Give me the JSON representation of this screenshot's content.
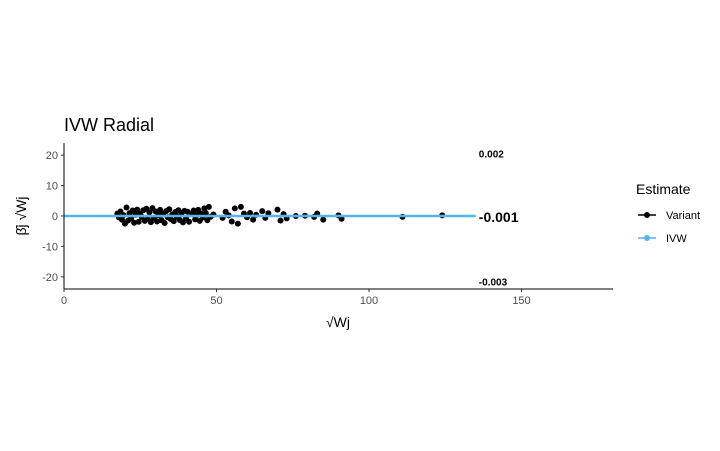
{
  "chart_data": {
    "type": "scatter",
    "title": "IVW Radial",
    "xlabel": "√Wj",
    "ylabel": "β̂j √Wj",
    "xlim": [
      0,
      180
    ],
    "ylim": [
      -24,
      24
    ],
    "x_ticks": [
      0,
      50,
      100,
      150
    ],
    "x_tick_labels": [
      "0",
      "50",
      "100",
      "150"
    ],
    "y_ticks": [
      20,
      10,
      0,
      -10,
      -20
    ],
    "y_tick_labels": [
      "20",
      "10",
      "0",
      "-10",
      "-20"
    ],
    "grid": false,
    "legend": {
      "title": "Estimate",
      "position": "right",
      "entries": [
        {
          "label": "Variant",
          "color": "#000000"
        },
        {
          "label": "IVW",
          "color": "#56B4E9"
        }
      ]
    },
    "series": [
      {
        "name": "Variant",
        "color": "#000000",
        "points": [
          [
            17.5,
            0.8
          ],
          [
            18,
            -0.5
          ],
          [
            18.5,
            1.5
          ],
          [
            19,
            -1.2
          ],
          [
            19.5,
            0.3
          ],
          [
            20,
            -2.5
          ],
          [
            20.5,
            2.8
          ],
          [
            21,
            -1.5
          ],
          [
            21.5,
            0.9
          ],
          [
            22,
            -0.8
          ],
          [
            22.5,
            1.8
          ],
          [
            23,
            -2.2
          ],
          [
            23.5,
            0.4
          ],
          [
            24,
            2.1
          ],
          [
            24.5,
            -1.9
          ],
          [
            25,
            0.6
          ],
          [
            25.5,
            -0.3
          ],
          [
            26,
            1.9
          ],
          [
            26.5,
            -1.6
          ],
          [
            27,
            2.4
          ],
          [
            27.5,
            -0.9
          ],
          [
            28,
            1.2
          ],
          [
            28.5,
            -2.0
          ],
          [
            29,
            2.6
          ],
          [
            29.5,
            -0.6
          ],
          [
            30,
            1.5
          ],
          [
            30.5,
            -1.8
          ],
          [
            31,
            0.2
          ],
          [
            31.5,
            2.0
          ],
          [
            32,
            -1.4
          ],
          [
            32.5,
            0.7
          ],
          [
            33,
            -2.3
          ],
          [
            33.5,
            1.6
          ],
          [
            34,
            -0.4
          ],
          [
            34.5,
            2.2
          ],
          [
            35,
            -1.0
          ],
          [
            35.5,
            0.5
          ],
          [
            36,
            -1.7
          ],
          [
            36.5,
            1.3
          ],
          [
            37,
            -0.2
          ],
          [
            37.5,
            1.9
          ],
          [
            38,
            -1.3
          ],
          [
            38.5,
            0.9
          ],
          [
            39,
            -2.1
          ],
          [
            39.5,
            1.7
          ],
          [
            40,
            -0.7
          ],
          [
            40.5,
            1.4
          ],
          [
            41,
            -1.9
          ],
          [
            42,
            0.6
          ],
          [
            42.5,
            1.8
          ],
          [
            43,
            -1.1
          ],
          [
            43.5,
            0.3
          ],
          [
            44,
            2.0
          ],
          [
            44.5,
            -1.6
          ],
          [
            45,
            0.8
          ],
          [
            45.5,
            -0.5
          ],
          [
            46,
            2.5
          ],
          [
            46.5,
            1.0
          ],
          [
            47,
            -1.4
          ],
          [
            47.5,
            3.0
          ],
          [
            48,
            -0.3
          ],
          [
            49,
            0.5
          ],
          [
            52,
            -0.6
          ],
          [
            53,
            1.4
          ],
          [
            54,
            0.2
          ],
          [
            55,
            -1.8
          ],
          [
            56,
            2.5
          ],
          [
            57,
            -2.5
          ],
          [
            58,
            3.0
          ],
          [
            59,
            0.8
          ],
          [
            60,
            -0.4
          ],
          [
            61,
            1.0
          ],
          [
            62,
            -1.2
          ],
          [
            63,
            0.4
          ],
          [
            65,
            1.6
          ],
          [
            66,
            -0.6
          ],
          [
            67,
            0.9
          ],
          [
            70,
            2.1
          ],
          [
            71,
            -1.5
          ],
          [
            72,
            0.6
          ],
          [
            73,
            -0.8
          ],
          [
            76,
            0.0
          ],
          [
            79,
            0.1
          ],
          [
            82,
            -0.3
          ],
          [
            83,
            0.8
          ],
          [
            85,
            -1.2
          ],
          [
            90,
            0.2
          ],
          [
            91,
            -0.9
          ],
          [
            111,
            -0.3
          ],
          [
            124,
            0.2
          ]
        ]
      }
    ],
    "ivw_line": {
      "name": "IVW",
      "color": "#56B4E9",
      "x": [
        0,
        135
      ],
      "y": [
        0,
        0
      ]
    },
    "annotations": [
      {
        "text": "0.002",
        "x": 136,
        "y": 20.5,
        "size": "small"
      },
      {
        "text": "-0.001",
        "x": 136,
        "y": -0.3,
        "size": "big"
      },
      {
        "text": "-0.003",
        "x": 136,
        "y": -21.5,
        "size": "small"
      }
    ]
  }
}
